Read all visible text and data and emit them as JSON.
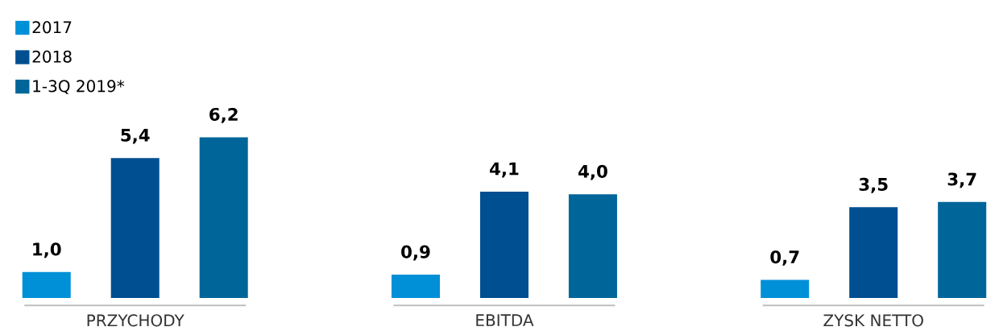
{
  "chart_data": {
    "type": "bar",
    "categories": [
      "PRZYCHODY",
      "EBITDA",
      "ZYSK NETTO"
    ],
    "series": [
      {
        "name": "2017",
        "color": "#0090d7",
        "values": [
          1.0,
          0.9,
          0.7
        ],
        "value_labels": [
          "1,0",
          "0,9",
          "0,7"
        ]
      },
      {
        "name": "2018",
        "color": "#004f90",
        "values": [
          5.4,
          4.1,
          3.5
        ],
        "value_labels": [
          "5,4",
          "4,1",
          "3,5"
        ]
      },
      {
        "name": "1-3Q 2019*",
        "color": "#006699",
        "values": [
          6.2,
          4.0,
          3.7
        ],
        "value_labels": [
          "6,2",
          "4,0",
          "3,7"
        ]
      }
    ],
    "legend": "top left"
  }
}
